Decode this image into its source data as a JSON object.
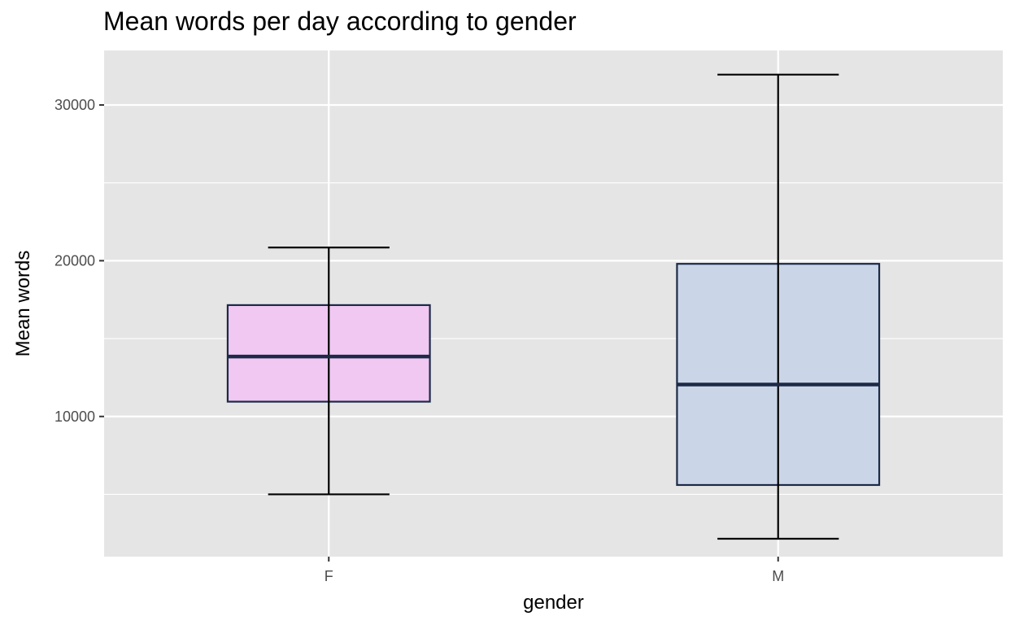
{
  "chart_data": {
    "type": "box",
    "title": "Mean words per day according to gender",
    "xlabel": "gender",
    "ylabel": "Mean words",
    "ylim": [
      1000,
      33500
    ],
    "yticks": [
      10000,
      20000,
      30000
    ],
    "categories": [
      "F",
      "M"
    ],
    "boxes": [
      {
        "category": "F",
        "whisker_low": 5000,
        "q1": 10950,
        "median": 13850,
        "q3": 17150,
        "whisker_high": 20850,
        "fill": "#f0c8f2"
      },
      {
        "category": "M",
        "whisker_low": 2150,
        "q1": 5600,
        "median": 12050,
        "q3": 19800,
        "whisker_high": 31950,
        "fill": "#cad6e8"
      }
    ],
    "panel_background": "#e5e5e5",
    "grid": true,
    "legend": "none",
    "box_outline": "#1c2a48"
  }
}
